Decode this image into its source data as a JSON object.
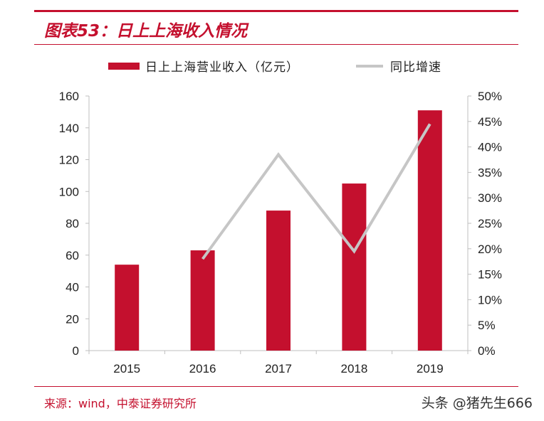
{
  "header": {
    "title": "图表53：日上上海收入情况"
  },
  "legend": {
    "bar_label": "日上上海营业收入（亿元）",
    "line_label": "同比增速"
  },
  "chart_data": {
    "type": "bar",
    "title": "图表53：日上上海收入情况",
    "categories": [
      "2015",
      "2016",
      "2017",
      "2018",
      "2019"
    ],
    "series": [
      {
        "name": "日上上海营业收入（亿元）",
        "type": "bar",
        "axis": "left",
        "values": [
          54,
          63,
          88,
          105,
          151
        ],
        "color": "#c4102e"
      },
      {
        "name": "同比增速",
        "type": "line",
        "axis": "right",
        "x": [
          "2016",
          "2017",
          "2018",
          "2019"
        ],
        "values": [
          18,
          38.5,
          19.5,
          44.5
        ],
        "color": "#c6c6c6"
      }
    ],
    "y_left": {
      "min": 0,
      "max": 160,
      "ticks": [
        0,
        20,
        40,
        60,
        80,
        100,
        120,
        140,
        160
      ]
    },
    "y_right": {
      "min": 0,
      "max": 50,
      "ticks": [
        "0%",
        "5%",
        "10%",
        "15%",
        "20%",
        "25%",
        "30%",
        "35%",
        "40%",
        "45%",
        "50%"
      ]
    },
    "legend_position": "top",
    "grid": false
  },
  "footer": {
    "source": "来源：wind，中泰证券研究所",
    "watermark": "头条 @猪先生666"
  }
}
